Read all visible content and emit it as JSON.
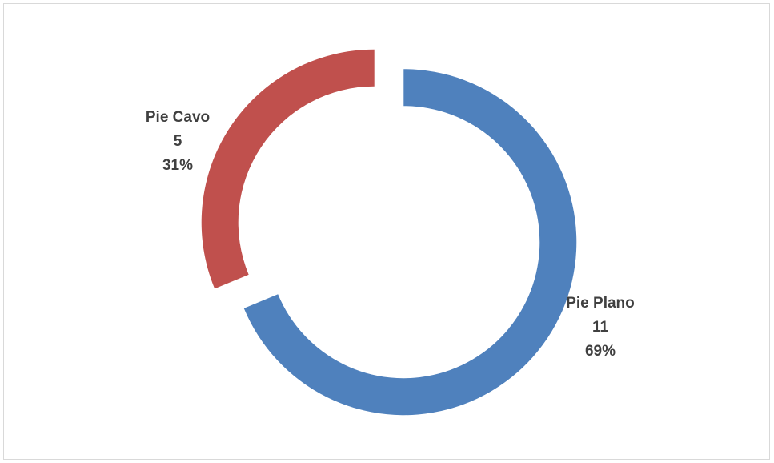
{
  "chart_data": {
    "type": "pie",
    "variant": "donut",
    "title": "",
    "legend": "none",
    "slices": [
      {
        "label": "Pie Plano",
        "value": 11,
        "percent": "69%",
        "color": "#4f81bd"
      },
      {
        "label": "Pie Cavo",
        "value": 5,
        "percent": "31%",
        "color": "#c0504d"
      }
    ]
  }
}
